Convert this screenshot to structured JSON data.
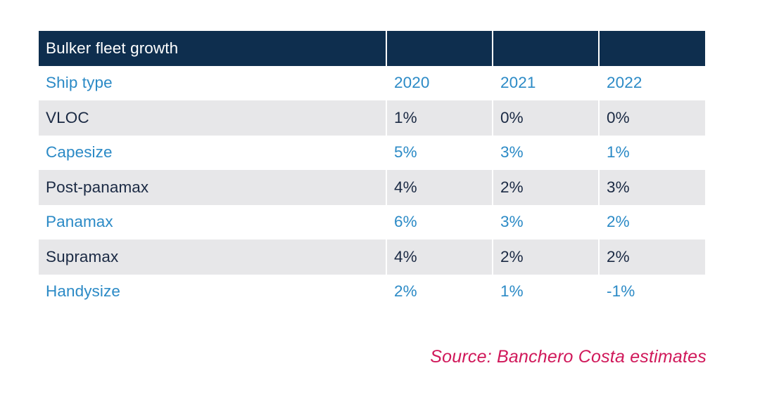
{
  "table": {
    "title": "Bulker fleet growth",
    "header": {
      "label": "Ship type",
      "years": [
        "2020",
        "2021",
        "2022"
      ]
    },
    "rows": [
      {
        "ship": "VLOC",
        "values": [
          "1%",
          "0%",
          "0%"
        ]
      },
      {
        "ship": "Capesize",
        "values": [
          "5%",
          "3%",
          "1%"
        ]
      },
      {
        "ship": "Post-panamax",
        "values": [
          "4%",
          "2%",
          "3%"
        ]
      },
      {
        "ship": "Panamax",
        "values": [
          "6%",
          "3%",
          "2%"
        ]
      },
      {
        "ship": "Supramax",
        "values": [
          "4%",
          "2%",
          "2%"
        ]
      },
      {
        "ship": "Handysize",
        "values": [
          "2%",
          "1%",
          "-1%"
        ]
      }
    ]
  },
  "source": "Source: Banchero Costa estimates",
  "colors": {
    "header_bg": "#0e2e4e",
    "blue_text": "#2b8ac6",
    "dark_text": "#1b2a44",
    "stripe_bg": "#e7e7e9",
    "source_text": "#d0185a"
  }
}
